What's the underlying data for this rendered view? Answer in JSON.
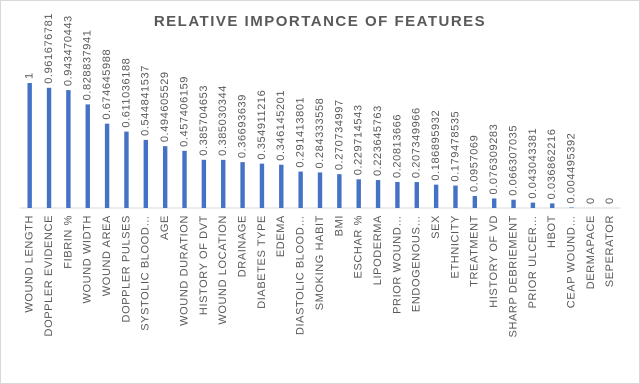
{
  "chart_data": {
    "type": "bar",
    "title": "RELATIVE IMPORTANCE OF FEATURES",
    "categories": [
      "WOUND LENGTH",
      "DOPPLER EVIDENCE",
      "FIBRIN %",
      "WOUND WIDTH",
      "WOUND AREA",
      "DOPPLER PULSES",
      "SYSTOLIC BLOOD…",
      "AGE",
      "WOUND DURATION",
      "HISTORY OF DVT",
      "WOUND LOCATION",
      "DRAINAGE",
      "DIABETES TYPE",
      "EDEMA",
      "DIASTOLIC BLOOD…",
      "SMOKING HABIT",
      "BMI",
      "ESCHAR %",
      "LIPODERMA",
      "PRIOR WOUND…",
      "ENDOGENOUS…",
      "SEX",
      "ETHNICITY",
      "TREATMENT",
      "HISTORY OF VD",
      "SHARP DEBRIEMENT",
      "PRIOR ULCER…",
      "HBOT",
      "CEAP WOUND…",
      "DERMAPACE",
      "SEPERATOR"
    ],
    "values": [
      1,
      0.961676781,
      0.943470443,
      0.828837941,
      0.674645988,
      0.611036188,
      0.544841537,
      0.494605529,
      0.457406159,
      0.385704653,
      0.385030344,
      0.36693639,
      0.354911216,
      0.346145201,
      0.291413801,
      0.284333558,
      0.270734997,
      0.229714543,
      0.223645763,
      0.20813666,
      0.207349966,
      0.186895932,
      0.179478535,
      0.0957069,
      0.076309283,
      0.066307035,
      0.043043381,
      0.036862216,
      0.004495392,
      0,
      0
    ],
    "color": "#4472c4",
    "ylim": [
      0,
      1
    ]
  }
}
